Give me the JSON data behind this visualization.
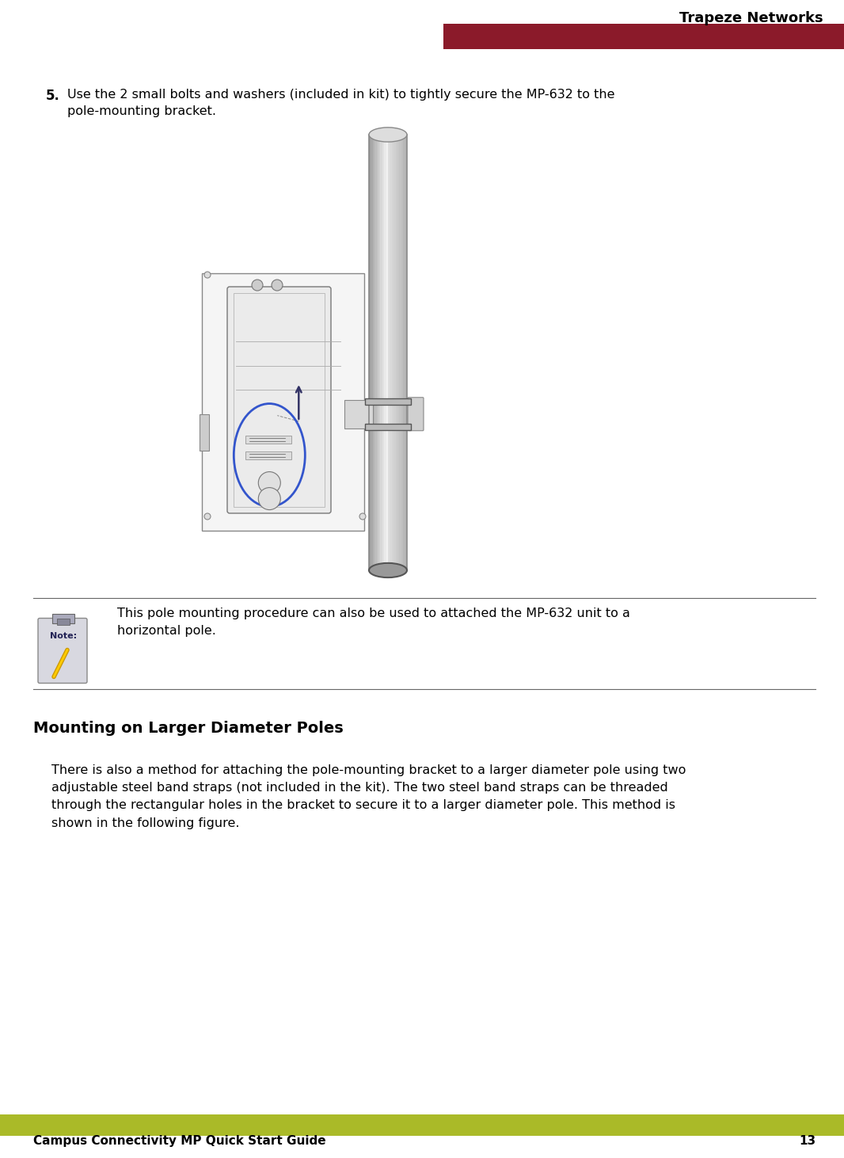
{
  "bg_color": "#ffffff",
  "header_bar_color": "#8B1A2A",
  "header_text": "Trapeze Networks",
  "footer_bar_color": "#AABA28",
  "footer_left_text": "Campus Connectivity MP Quick Start Guide",
  "footer_right_text": "13",
  "step5_bold": "5.",
  "step5_text": "Use the 2 small bolts and washers (included in kit) to tightly secure the MP-632 to the\npole-mounting bracket.",
  "note_text": "This pole mounting procedure can also be used to attached the MP-632 unit to a\nhorizontal pole.",
  "section_title": "Mounting on Larger Diameter Poles",
  "section_body": "There is also a method for attaching the pole-mounting bracket to a larger diameter pole using two\nadjustable steel band straps (not included in the kit). The two steel band straps can be threaded\nthrough the rectangular holes in the bracket to secure it to a larger diameter pole. This method is\nshown in the following figure."
}
